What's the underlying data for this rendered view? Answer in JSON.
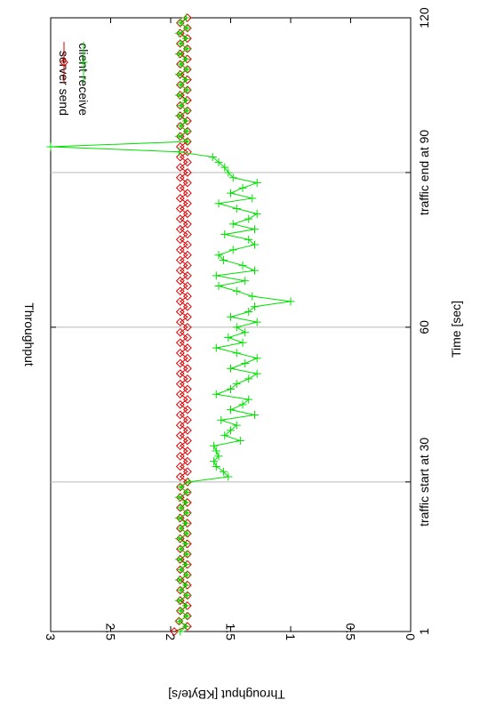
{
  "chart_data": {
    "type": "line",
    "title": "Throughput",
    "xlabel": "Time [sec]",
    "ylabel": "Throughput [KByte/s]",
    "xlim": [
      1,
      120
    ],
    "ylim": [
      0,
      3
    ],
    "x_ticks": [
      {
        "value": 1,
        "label": "1"
      },
      {
        "value": 60,
        "label": "60"
      },
      {
        "value": 120,
        "label": "120"
      }
    ],
    "x_annotations": [
      {
        "value": 30,
        "label": "traffic start at 30"
      },
      {
        "value": 90,
        "label": "traffic end at 90"
      }
    ],
    "y_ticks": [
      {
        "value": 0,
        "label": "0"
      },
      {
        "value": 0.5,
        "label": "0.5"
      },
      {
        "value": 1,
        "label": "1"
      },
      {
        "value": 1.5,
        "label": "1.5"
      },
      {
        "value": 2,
        "label": "2"
      },
      {
        "value": 2.5,
        "label": "2.5"
      },
      {
        "value": 3,
        "label": "3"
      }
    ],
    "grid": "vertical lines at 30, 60, 90",
    "legend_position": "top-right",
    "orientation": "rotated 90 degrees clockwise",
    "series": [
      {
        "name": "server send",
        "color": "#e00000",
        "marker": "diamond",
        "x": [
          1,
          2,
          3,
          4,
          5,
          6,
          7,
          8,
          9,
          10,
          11,
          12,
          13,
          14,
          15,
          16,
          17,
          18,
          19,
          20,
          21,
          22,
          23,
          24,
          25,
          26,
          27,
          28,
          29,
          30,
          31,
          32,
          33,
          34,
          35,
          36,
          37,
          38,
          39,
          40,
          41,
          42,
          43,
          44,
          45,
          46,
          47,
          48,
          49,
          50,
          51,
          52,
          53,
          54,
          55,
          56,
          57,
          58,
          59,
          60,
          61,
          62,
          63,
          64,
          65,
          66,
          67,
          68,
          69,
          70,
          71,
          72,
          73,
          74,
          75,
          76,
          77,
          78,
          79,
          80,
          81,
          82,
          83,
          84,
          85,
          86,
          87,
          88,
          89,
          90,
          91,
          92,
          93,
          94,
          95,
          96,
          97,
          98,
          99,
          100,
          101,
          102,
          103,
          104,
          105,
          106,
          107,
          108,
          109,
          110,
          111,
          112,
          113,
          114,
          115,
          116,
          117,
          118,
          119,
          120
        ],
        "values": [
          1.97,
          1.86,
          1.93,
          1.86,
          1.92,
          1.86,
          1.92,
          1.86,
          1.92,
          1.86,
          1.92,
          1.86,
          1.92,
          1.86,
          1.92,
          1.86,
          1.92,
          1.86,
          1.92,
          1.86,
          1.92,
          1.86,
          1.92,
          1.86,
          1.92,
          1.86,
          1.92,
          1.86,
          1.92,
          1.86,
          1.92,
          1.86,
          1.92,
          1.86,
          1.92,
          1.86,
          1.92,
          1.86,
          1.92,
          1.86,
          1.92,
          1.86,
          1.92,
          1.86,
          1.92,
          1.86,
          1.92,
          1.86,
          1.92,
          1.86,
          1.92,
          1.86,
          1.92,
          1.86,
          1.92,
          1.86,
          1.92,
          1.86,
          1.92,
          1.86,
          1.92,
          1.86,
          1.92,
          1.86,
          1.92,
          1.86,
          1.92,
          1.86,
          1.92,
          1.86,
          1.92,
          1.86,
          1.92,
          1.86,
          1.92,
          1.86,
          1.92,
          1.86,
          1.92,
          1.86,
          1.92,
          1.86,
          1.92,
          1.86,
          1.92,
          1.86,
          1.92,
          1.86,
          1.92,
          1.86,
          1.92,
          1.86,
          1.92,
          1.86,
          1.92,
          1.86,
          1.92,
          1.86,
          1.92,
          1.86,
          1.92,
          1.86,
          1.92,
          1.86,
          1.92,
          1.86,
          1.92,
          1.86,
          1.92,
          1.86,
          1.92,
          1.86,
          1.92,
          1.86,
          1.92,
          1.86,
          1.92,
          1.86,
          1.92,
          1.86
        ]
      },
      {
        "name": "client receive",
        "color": "#00e000",
        "marker": "plus",
        "x": [
          1,
          2,
          3,
          4,
          5,
          6,
          7,
          8,
          9,
          10,
          11,
          12,
          13,
          14,
          15,
          16,
          17,
          18,
          19,
          20,
          21,
          22,
          23,
          24,
          25,
          26,
          27,
          28,
          29,
          30,
          31,
          32,
          33,
          34,
          35,
          36,
          37,
          38,
          39,
          40,
          41,
          42,
          43,
          44,
          45,
          46,
          47,
          48,
          49,
          50,
          51,
          52,
          53,
          54,
          55,
          56,
          57,
          58,
          59,
          60,
          61,
          62,
          63,
          64,
          65,
          66,
          67,
          68,
          69,
          70,
          71,
          72,
          73,
          74,
          75,
          76,
          77,
          78,
          79,
          80,
          81,
          82,
          83,
          84,
          85,
          86,
          87,
          88,
          89,
          90,
          91,
          92,
          93,
          94,
          95,
          96,
          97,
          98,
          99,
          100,
          101,
          102,
          103,
          104,
          105,
          106,
          107,
          108,
          109,
          110,
          111,
          112,
          113,
          114,
          115,
          116,
          117,
          118,
          119,
          120
        ],
        "values": [
          1.92,
          1.87,
          1.93,
          1.86,
          1.92,
          1.87,
          1.93,
          1.86,
          1.92,
          1.87,
          1.93,
          1.86,
          1.92,
          1.87,
          1.93,
          1.86,
          1.92,
          1.87,
          1.93,
          1.86,
          1.92,
          1.87,
          1.93,
          1.86,
          1.92,
          1.87,
          1.93,
          1.86,
          1.92,
          1.85,
          1.52,
          1.56,
          1.62,
          1.64,
          1.6,
          1.62,
          1.64,
          1.42,
          1.55,
          1.5,
          1.45,
          1.58,
          1.3,
          1.5,
          1.4,
          1.35,
          1.62,
          1.5,
          1.45,
          1.35,
          1.28,
          1.5,
          1.38,
          1.28,
          1.45,
          1.62,
          1.4,
          1.52,
          1.38,
          1.45,
          1.28,
          1.5,
          1.35,
          1.3,
          1.0,
          1.32,
          1.45,
          1.6,
          1.38,
          1.62,
          1.3,
          1.4,
          1.56,
          1.6,
          1.48,
          1.3,
          1.35,
          1.55,
          1.3,
          1.48,
          1.35,
          1.28,
          1.45,
          1.6,
          1.32,
          1.5,
          1.4,
          1.28,
          1.48,
          1.52,
          1.55,
          1.6,
          1.65,
          1.93,
          3.0,
          1.86,
          1.93,
          1.86,
          1.92,
          1.87,
          1.93,
          1.86,
          1.92,
          1.87,
          1.93,
          1.86,
          1.92,
          1.87,
          1.93,
          1.86,
          1.92,
          1.87,
          1.93,
          1.86,
          1.92,
          1.87,
          1.93,
          1.86,
          1.92,
          1.87
        ]
      }
    ]
  }
}
